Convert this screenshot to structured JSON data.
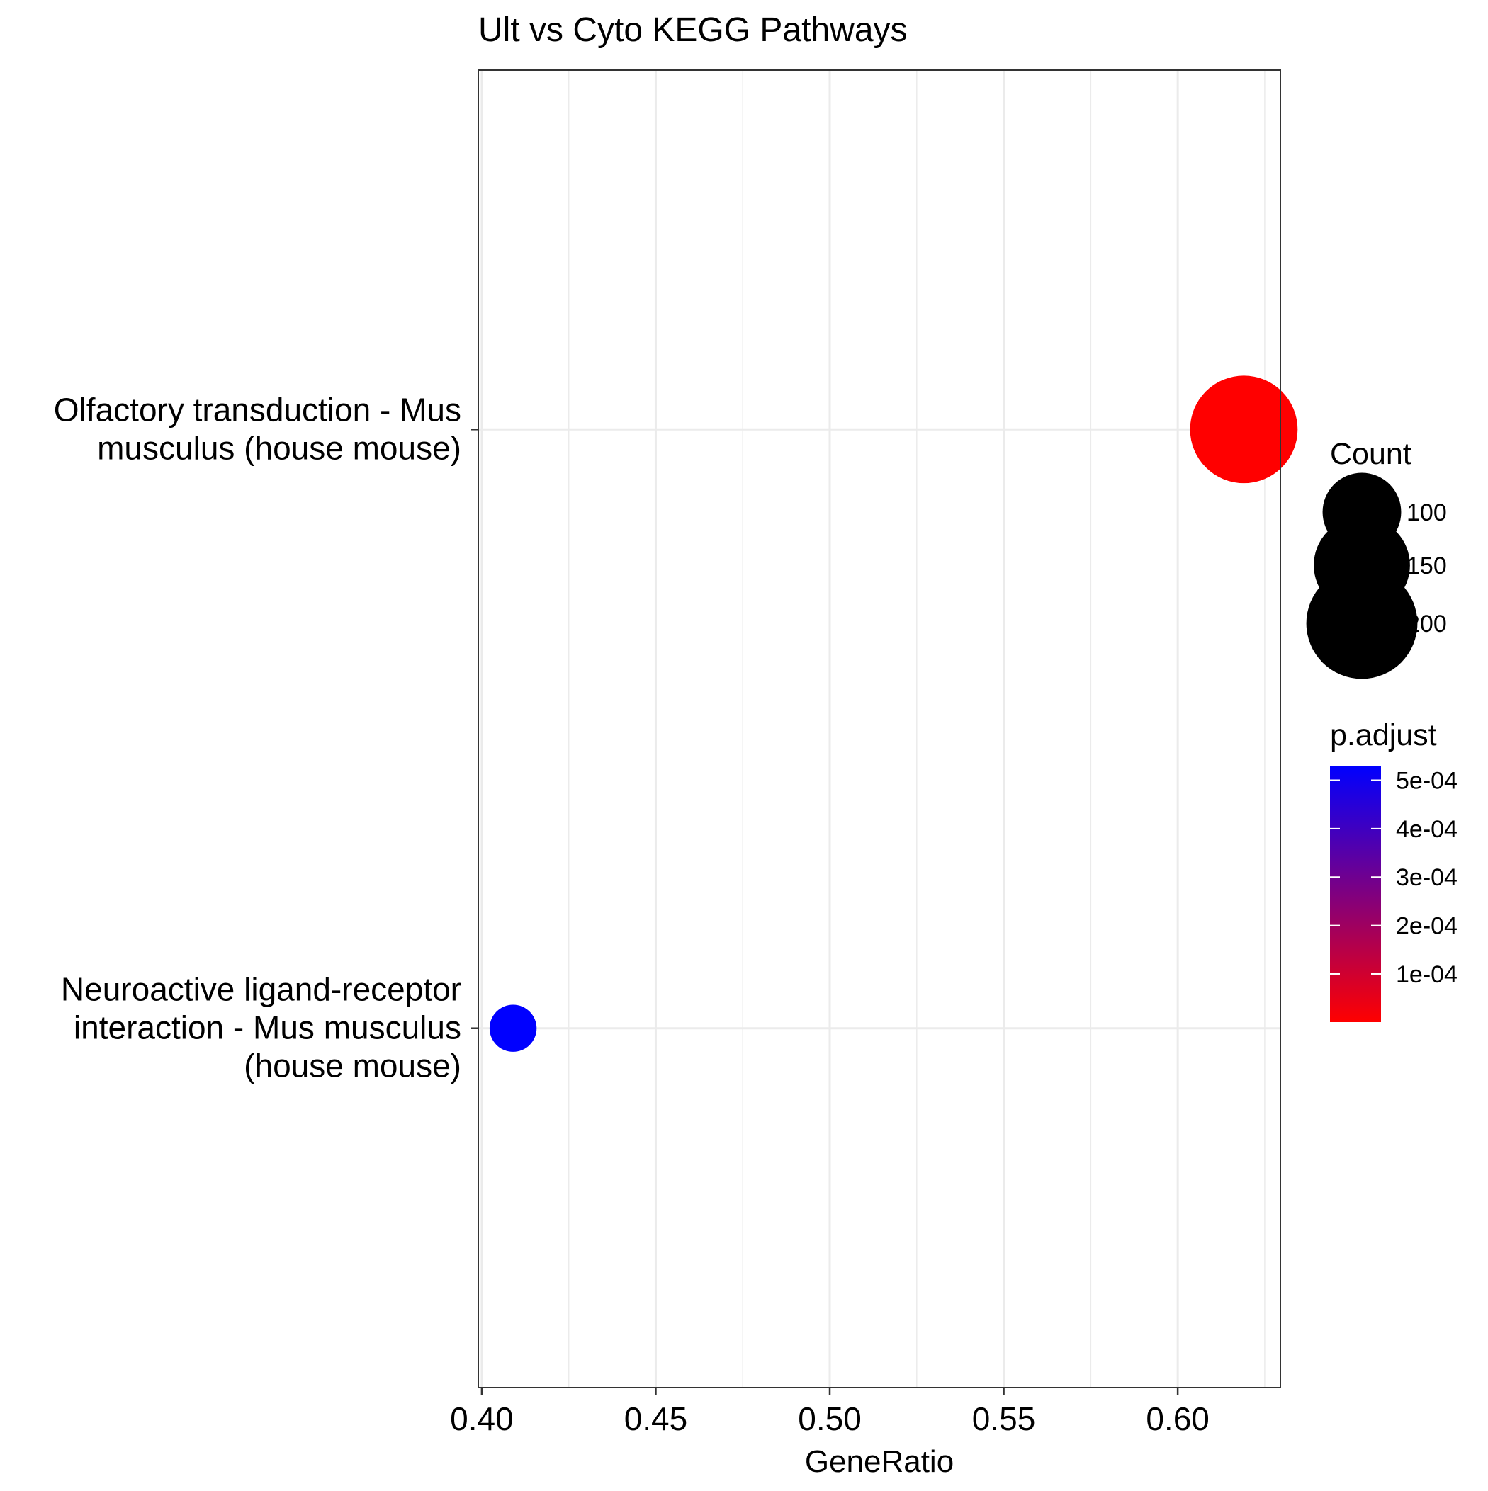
{
  "chart_data": {
    "type": "scatter",
    "title": "Ult vs Cyto KEGG Pathways",
    "xlabel": "GeneRatio",
    "ylabel": "",
    "xlim": [
      0.399,
      0.6295
    ],
    "x_ticks": [
      0.4,
      0.45,
      0.5,
      0.55,
      0.6
    ],
    "x_tick_labels": [
      "0.40",
      "0.45",
      "0.50",
      "0.55",
      "0.60"
    ],
    "x_minor_ticks": [
      0.425,
      0.475,
      0.525,
      0.575,
      0.625
    ],
    "grid": true,
    "categories": [
      {
        "name": "Olfactory transduction - Mus musculus (house mouse)",
        "label_lines": [
          "Olfactory transduction - Mus",
          "musculus (house mouse)"
        ]
      },
      {
        "name": "Neuroactive ligand-receptor interaction - Mus musculus (house mouse)",
        "label_lines": [
          "Neuroactive ligand-receptor",
          "interaction - Mus musculus",
          "(house mouse)"
        ]
      }
    ],
    "points": [
      {
        "category": "Olfactory transduction - Mus musculus (house mouse)",
        "gene_ratio": 0.619,
        "count": 235,
        "p_adjust": 5e-07,
        "color": "#FF0000"
      },
      {
        "category": "Neuroactive ligand-receptor interaction - Mus musculus (house mouse)",
        "gene_ratio": 0.409,
        "count": 45,
        "p_adjust": 0.00053,
        "color": "#0000FF"
      }
    ],
    "legend_position": "right",
    "size_legend": {
      "title": "Count",
      "entries": [
        {
          "label": "100",
          "value": 100
        },
        {
          "label": "150",
          "value": 150
        },
        {
          "label": "200",
          "value": 200
        }
      ]
    },
    "color_legend": {
      "title": "p.adjust",
      "low_color": "#FF0000",
      "high_color": "#0000FF",
      "range": [
        5e-07,
        0.00053
      ],
      "entries": [
        {
          "label": "5e-04",
          "value": 0.0005
        },
        {
          "label": "4e-04",
          "value": 0.0004
        },
        {
          "label": "3e-04",
          "value": 0.0003
        },
        {
          "label": "2e-04",
          "value": 0.0002
        },
        {
          "label": "1e-04",
          "value": 0.0001
        }
      ]
    }
  }
}
